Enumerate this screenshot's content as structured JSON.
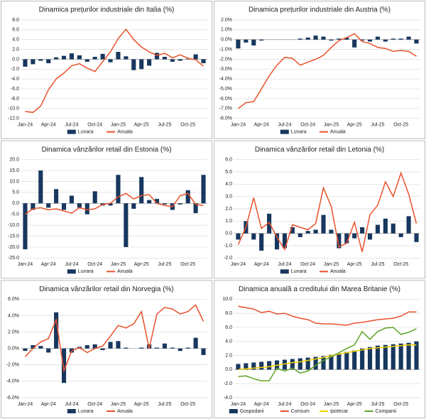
{
  "chart_data": [
    {
      "type": "combo",
      "title": "Dinamica prețurilor industriale din Italia (%)",
      "categories": [
        "Jan-24",
        null,
        null,
        "Apr-24",
        null,
        null,
        "Jul-24",
        null,
        null,
        "Oct-24",
        null,
        null,
        "Jan-25",
        null,
        null,
        "Apr-25",
        null,
        null,
        "Jul-25",
        null,
        null,
        "Oct-25",
        null,
        null
      ],
      "ylim": [
        -12,
        8
      ],
      "yticks": [
        {
          "value": -12,
          "label": "-12.0"
        },
        {
          "value": -10,
          "label": "-10.0"
        },
        {
          "value": -8,
          "label": "-8.0"
        },
        {
          "value": -6,
          "label": "-6.0"
        },
        {
          "value": -4,
          "label": "-4.0"
        },
        {
          "value": -2,
          "label": "-2.0"
        },
        {
          "value": 0,
          "label": "0.0"
        },
        {
          "value": 2,
          "label": "2.0"
        },
        {
          "value": 4,
          "label": "4.0"
        },
        {
          "value": 6,
          "label": "6.0"
        },
        {
          "value": 8,
          "label": "8.0"
        }
      ],
      "grid": true,
      "series": [
        {
          "name": "Lunara",
          "type": "bar",
          "color": "#17375e",
          "values": [
            -1.5,
            -1.0,
            -0.3,
            -0.8,
            0.4,
            0.7,
            1.2,
            0.8,
            -0.5,
            0.5,
            1.1,
            -0.6,
            1.5,
            0.6,
            -2.2,
            -2.0,
            -1.3,
            1.3,
            0.5,
            -0.5,
            -0.3,
            0.1,
            1.0,
            -0.8
          ]
        },
        {
          "name": "Anuala",
          "type": "line",
          "color": "#e8512a",
          "values": [
            -10.6,
            -10.8,
            -9.5,
            -6.2,
            -4.0,
            -2.8,
            -1.3,
            -0.9,
            -1.8,
            -2.5,
            -0.5,
            1.5,
            4.2,
            6.1,
            4.0,
            2.5,
            1.5,
            0.8,
            1.2,
            0.3,
            0.9,
            0.2,
            -0.1,
            -1.4
          ]
        }
      ]
    },
    {
      "type": "combo",
      "title": "Dinamica prețurilor industriale din Austria (%)",
      "categories": [
        "Jan-24",
        null,
        null,
        "Apr-24",
        null,
        null,
        "Jul-24",
        null,
        null,
        "Oct-24",
        null,
        null,
        "Jan-25",
        null,
        null,
        "Apr-25",
        null,
        null,
        "Jul-25",
        null,
        null,
        "Oct-25",
        null,
        null
      ],
      "ylim": [
        -8,
        2
      ],
      "yticks": [
        {
          "value": -8,
          "label": "-8.0%"
        },
        {
          "value": -7,
          "label": "-7.0%"
        },
        {
          "value": -6,
          "label": "-6.0%"
        },
        {
          "value": -5,
          "label": "-5.0%"
        },
        {
          "value": -4,
          "label": "-4.0%"
        },
        {
          "value": -3,
          "label": "-3.0%"
        },
        {
          "value": -2,
          "label": "-2.0%"
        },
        {
          "value": -1,
          "label": "-1.0%"
        },
        {
          "value": 0,
          "label": "0.0%"
        },
        {
          "value": 1,
          "label": "1.0%"
        },
        {
          "value": 2,
          "label": "2.0%"
        }
      ],
      "grid": true,
      "series": [
        {
          "name": "Lunara",
          "type": "bar",
          "color": "#17375e",
          "values": [
            -0.9,
            -0.3,
            -0.6,
            -0.1,
            0.0,
            0.0,
            0.0,
            0.0,
            0.1,
            0.2,
            0.4,
            0.3,
            -0.1,
            0.1,
            0.2,
            -0.8,
            -0.1,
            -0.2,
            0.3,
            -0.2,
            0.1,
            0.1,
            0.3,
            -0.4
          ]
        },
        {
          "name": "Anuala",
          "type": "line",
          "color": "#e8512a",
          "values": [
            -7.0,
            -6.4,
            -6.3,
            -5.0,
            -3.7,
            -2.6,
            -1.8,
            -1.9,
            -2.6,
            -2.3,
            -2.0,
            -1.6,
            -0.8,
            -0.1,
            0.2,
            0.6,
            -0.2,
            -0.4,
            -0.8,
            -0.9,
            -1.2,
            -1.1,
            -1.2,
            -1.7
          ]
        }
      ]
    },
    {
      "type": "combo",
      "title": "Dinamica vânzărilor retail din Estonia (%)",
      "categories": [
        "Jan-24",
        null,
        null,
        "Apr-24",
        null,
        null,
        "Jul-24",
        null,
        null,
        "Oct-24",
        null,
        null,
        "Jan-25",
        null,
        null,
        "Apr-25",
        null,
        null,
        "Jul-25",
        null,
        null,
        "Oct-25",
        null,
        null
      ],
      "ylim": [
        -25,
        20
      ],
      "yticks": [
        {
          "value": -25,
          "label": "-25.0"
        },
        {
          "value": -20,
          "label": "-20.0"
        },
        {
          "value": -15,
          "label": "-15.0"
        },
        {
          "value": -10,
          "label": "-10.0"
        },
        {
          "value": -5,
          "label": "-5.0"
        },
        {
          "value": 0,
          "label": "0.0"
        },
        {
          "value": 5,
          "label": "5.0"
        },
        {
          "value": 10,
          "label": "10.0"
        },
        {
          "value": 15,
          "label": "15.0"
        },
        {
          "value": 20,
          "label": "20.0"
        }
      ],
      "grid": true,
      "series": [
        {
          "name": "Lunara",
          "type": "bar",
          "color": "#17375e",
          "values": [
            -21,
            -3,
            15,
            -2,
            6.5,
            -3,
            3.5,
            -2,
            -5,
            5.5,
            -1,
            -1,
            13,
            -20,
            -2.5,
            12,
            1.5,
            2,
            -0.5,
            -3,
            -0.5,
            6,
            -4.5,
            13
          ]
        },
        {
          "name": "Anuala",
          "type": "line",
          "color": "#e8512a",
          "values": [
            -5,
            -2.5,
            -2,
            -3,
            -2.5,
            -3.5,
            -4.5,
            -2,
            -3,
            -2.5,
            -0.5,
            0,
            3,
            4.5,
            2,
            3.5,
            4,
            0,
            -1,
            -1.5,
            3.5,
            4.5,
            -0.5,
            -1
          ]
        }
      ]
    },
    {
      "type": "combo",
      "title": "Dinamica vânzărilor retail din Letonia (%)",
      "categories": [
        "Jan-24",
        null,
        null,
        "Apr-24",
        null,
        null,
        "Jul-24",
        null,
        null,
        "Oct-24",
        null,
        null,
        "Jan-25",
        null,
        null,
        "Apr-25",
        null,
        null,
        "Jul-25",
        null,
        null,
        "Oct-25",
        null,
        null
      ],
      "ylim": [
        -2,
        6
      ],
      "yticks": [
        {
          "value": -2,
          "label": "-2.0"
        },
        {
          "value": -1,
          "label": "-1.0"
        },
        {
          "value": 0,
          "label": "0.0"
        },
        {
          "value": 1,
          "label": "1.0"
        },
        {
          "value": 2,
          "label": "2.0"
        },
        {
          "value": 3,
          "label": "3.0"
        },
        {
          "value": 4,
          "label": "4.0"
        },
        {
          "value": 5,
          "label": "5.0"
        },
        {
          "value": 6,
          "label": "6.0"
        }
      ],
      "grid": true,
      "series": [
        {
          "name": "Lunara",
          "type": "bar",
          "color": "#17375e",
          "values": [
            -0.5,
            1.0,
            -0.5,
            -1.4,
            1.6,
            -1.3,
            -1.2,
            0.5,
            -0.3,
            0.2,
            0.3,
            1.5,
            0.3,
            -1.2,
            -0.8,
            -0.4,
            0.5,
            -0.5,
            0.7,
            1.2,
            0.8,
            -0.3,
            1.4,
            -0.7
          ]
        },
        {
          "name": "Anuala",
          "type": "line",
          "color": "#e8512a",
          "values": [
            -0.9,
            0.5,
            2.9,
            0.4,
            0.9,
            -0.3,
            -1.3,
            0.7,
            0.5,
            0.3,
            0.8,
            3.7,
            2.2,
            -1.1,
            -0.8,
            0.9,
            -1.5,
            1.5,
            2.3,
            4.2,
            3.0,
            4.9,
            3.2,
            0.8
          ]
        }
      ]
    },
    {
      "type": "combo",
      "title": "Dinamica vânzărilor retail din Norvegia (%)",
      "categories": [
        "Jan-24",
        null,
        null,
        "Apr-24",
        null,
        null,
        "Jul-24",
        null,
        null,
        "Oct-24",
        null,
        null,
        "Jan-25",
        null,
        null,
        "Apr-25",
        null,
        null,
        "Jul-25",
        null,
        null,
        "Oct-25",
        null,
        null
      ],
      "ylim": [
        -6,
        6
      ],
      "yticks": [
        {
          "value": -6,
          "label": "-6.0%"
        },
        {
          "value": -4,
          "label": "-4.0%"
        },
        {
          "value": -2,
          "label": "-2.0%"
        },
        {
          "value": 0,
          "label": "0.0%"
        },
        {
          "value": 2,
          "label": "2.0%"
        },
        {
          "value": 4,
          "label": "4.0%"
        },
        {
          "value": 6,
          "label": "6.0%"
        }
      ],
      "grid": true,
      "series": [
        {
          "name": "Lunara",
          "type": "bar",
          "color": "#17375e",
          "values": [
            -0.3,
            0.4,
            0.3,
            -0.5,
            4.4,
            -4.2,
            -0.5,
            0.2,
            0.4,
            0.5,
            -0.2,
            0.8,
            0.9,
            0.1,
            0.0,
            0.1,
            0.5,
            0.1,
            0.6,
            0.1,
            -0.3,
            0.1,
            1.3,
            -0.8
          ]
        },
        {
          "name": "Anuala",
          "type": "line",
          "color": "#e8512a",
          "values": [
            -1,
            0,
            0.8,
            1.2,
            3.5,
            -2.7,
            -0.3,
            0.1,
            -0.5,
            0,
            0.3,
            1.5,
            2.8,
            2.5,
            3,
            4.5,
            0,
            4.2,
            5,
            4.8,
            4.2,
            4.5,
            5.3,
            3.3
          ]
        }
      ]
    },
    {
      "type": "combo",
      "title": "Dinamica anuală a creditului din Marea Britanie (%)",
      "categories": [
        "Jan-24",
        null,
        null,
        "Apr-24",
        null,
        null,
        "Jul-24",
        null,
        null,
        "Oct-24",
        null,
        null,
        "Jan-25",
        null,
        null,
        "Apr-25",
        null,
        null,
        "Jul-25",
        null,
        null,
        "Oct-25",
        null,
        null
      ],
      "ylim": [
        -4,
        10
      ],
      "yticks": [
        {
          "value": -4,
          "label": "-4.0"
        },
        {
          "value": -2,
          "label": "-2.0"
        },
        {
          "value": 0,
          "label": "0.0"
        },
        {
          "value": 2,
          "label": "2.0"
        },
        {
          "value": 4,
          "label": "4.0"
        },
        {
          "value": 6,
          "label": "6.0"
        },
        {
          "value": 8,
          "label": "8.0"
        },
        {
          "value": 10,
          "label": "10.0"
        }
      ],
      "grid": true,
      "series": [
        {
          "name": "Gospodarii",
          "type": "bar",
          "color": "#17375e",
          "values": [
            0.8,
            0.9,
            1.0,
            1.1,
            1.2,
            1.3,
            1.4,
            1.5,
            1.6,
            1.7,
            1.8,
            1.9,
            2.1,
            2.3,
            2.5,
            2.7,
            3.0,
            3.2,
            3.4,
            3.5,
            3.6,
            3.7,
            3.8,
            4.0
          ]
        },
        {
          "name": "Consum",
          "type": "line",
          "color": "#e8512a",
          "values": [
            9,
            8.8,
            8.6,
            8.1,
            8.3,
            7.9,
            8.0,
            7.6,
            7.3,
            7.1,
            6.6,
            6.5,
            6.5,
            6.4,
            6.3,
            6.6,
            6.7,
            6.9,
            7.1,
            7.2,
            7.3,
            7.6,
            8.2,
            8.2
          ]
        },
        {
          "name": "Ipotecar",
          "type": "line",
          "color": "#f5d000",
          "values": [
            0,
            0.1,
            0.2,
            0.3,
            0.4,
            0.6,
            0.8,
            1.0,
            1.1,
            1.3,
            1.5,
            1.7,
            2.0,
            2.2,
            2.4,
            2.6,
            2.8,
            3.0,
            3.1,
            3.2,
            3.3,
            3.4,
            3.5,
            3.5
          ]
        },
        {
          "name": "Companii",
          "type": "line",
          "color": "#5ea328",
          "values": [
            -1,
            -0.9,
            -1.3,
            -1.6,
            -1.6,
            0.2,
            -0.2,
            0.2,
            -0.5,
            -0.2,
            0.6,
            1.3,
            1.8,
            2.4,
            3.0,
            3.5,
            5.4,
            4.3,
            5.4,
            5.9,
            6.0,
            5.0,
            5.3,
            5.8
          ]
        }
      ]
    }
  ]
}
